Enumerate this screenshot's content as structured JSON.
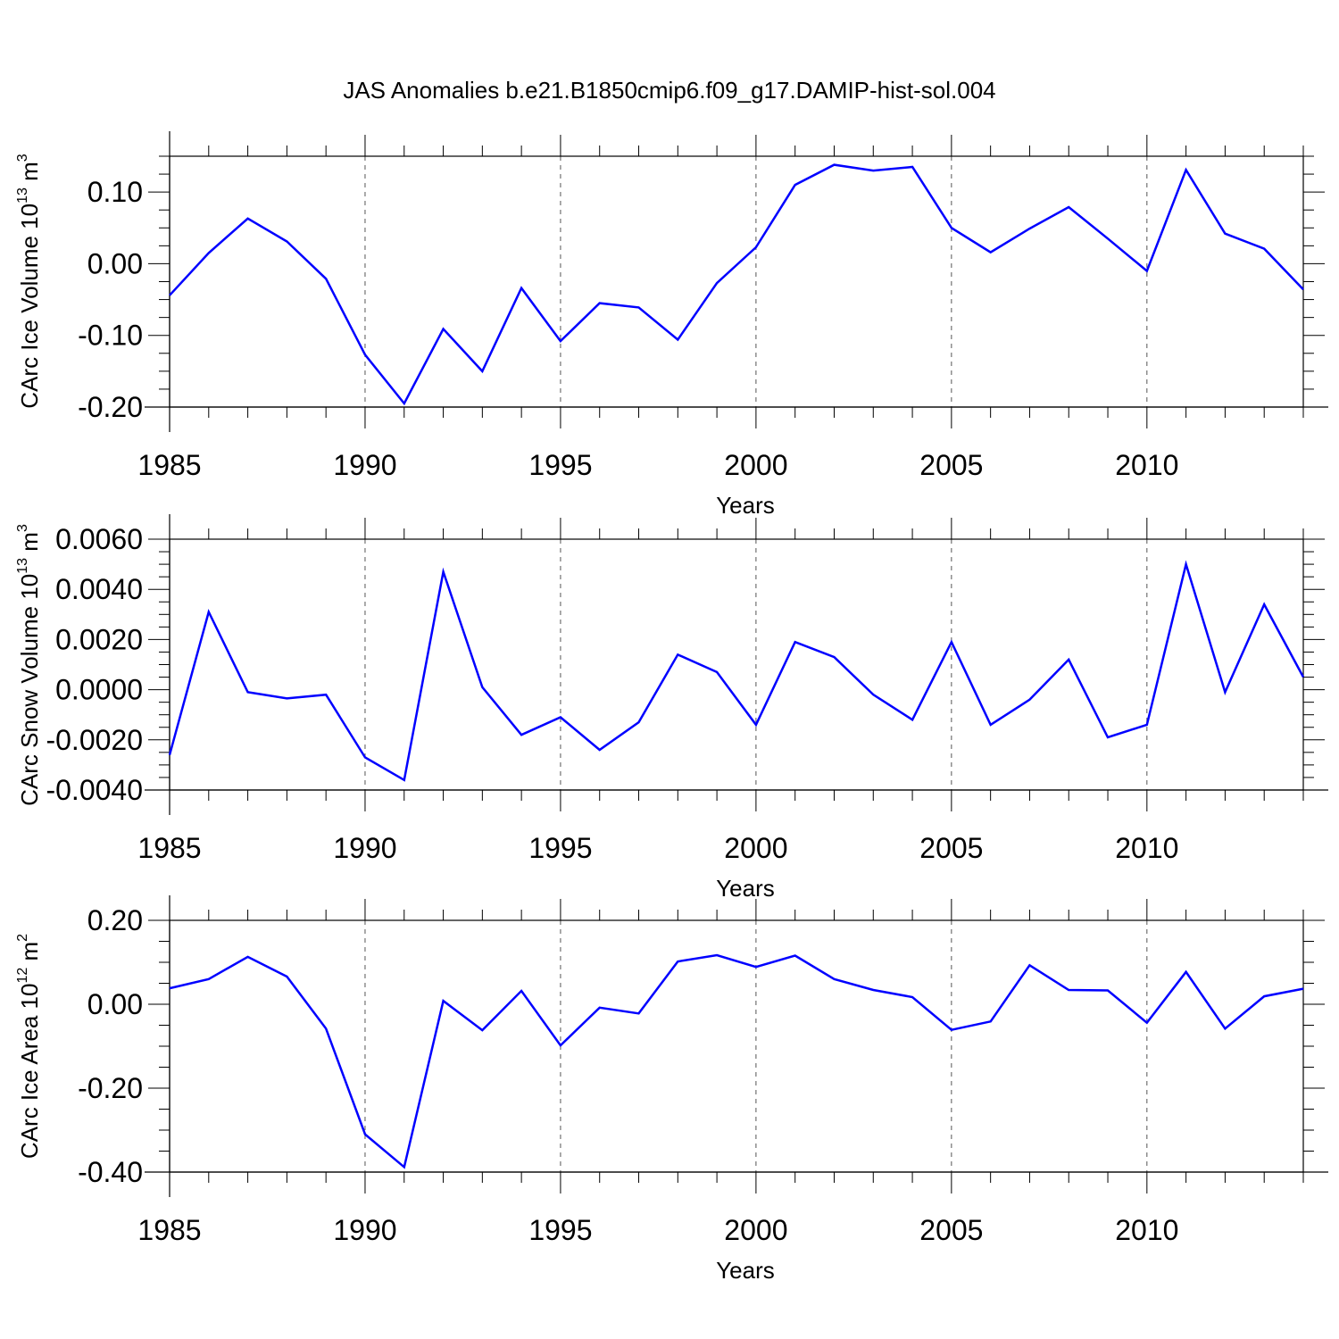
{
  "chart_data": [
    {
      "type": "line",
      "title": "JAS Anomalies b.e21.B1850cmip6.f09_g17.DAMIP-hist-sol.004",
      "ylabel_prefix": "CArc Ice Volume 10",
      "ylabel_exp": "13",
      "ylabel_unit": " m",
      "ylabel_unit_exp": "3",
      "xlabel": "Years",
      "xlim": [
        1985,
        2014
      ],
      "ylim": [
        -0.2,
        0.15
      ],
      "yticks": [
        -0.2,
        -0.1,
        0.0,
        0.1
      ],
      "ytick_labels": [
        "-0.20",
        "-0.10",
        "0.00",
        "0.10"
      ],
      "xticks": [
        1985,
        1990,
        1995,
        2000,
        2005,
        2010
      ],
      "xtick_labels": [
        "1985",
        "1990",
        "1995",
        "2000",
        "2005",
        "2010"
      ],
      "grid_x": [
        1990,
        1995,
        2000,
        2005,
        2010
      ],
      "color": "#0000ff",
      "x": [
        1985,
        1986,
        1987,
        1988,
        1989,
        1990,
        1991,
        1992,
        1993,
        1994,
        1995,
        1996,
        1997,
        1998,
        1999,
        2000,
        2001,
        2002,
        2003,
        2004,
        2005,
        2006,
        2007,
        2008,
        2009,
        2010,
        2011,
        2012,
        2013,
        2014
      ],
      "values": [
        -0.044,
        0.015,
        0.063,
        0.031,
        -0.021,
        -0.127,
        -0.195,
        -0.091,
        -0.15,
        -0.034,
        -0.108,
        -0.055,
        -0.061,
        -0.106,
        -0.027,
        0.023,
        0.11,
        0.138,
        0.13,
        0.135,
        0.05,
        0.016,
        0.049,
        0.079,
        0.035,
        -0.01,
        0.131,
        0.042,
        0.021,
        -0.036
      ]
    },
    {
      "type": "line",
      "ylabel_prefix": "CArc Snow Volume 10",
      "ylabel_exp": "13",
      "ylabel_unit": " m",
      "ylabel_unit_exp": "3",
      "xlabel": "Years",
      "xlim": [
        1985,
        2014
      ],
      "ylim": [
        -0.004,
        0.006
      ],
      "yticks": [
        -0.004,
        -0.002,
        0.0,
        0.002,
        0.004,
        0.006
      ],
      "ytick_labels": [
        "-0.0040",
        "-0.0020",
        "0.0000",
        "0.0020",
        "0.0040",
        "0.0060"
      ],
      "xticks": [
        1985,
        1990,
        1995,
        2000,
        2005,
        2010
      ],
      "xtick_labels": [
        "1985",
        "1990",
        "1995",
        "2000",
        "2005",
        "2010"
      ],
      "grid_x": [
        1990,
        1995,
        2000,
        2005,
        2010
      ],
      "color": "#0000ff",
      "x": [
        1985,
        1986,
        1987,
        1988,
        1989,
        1990,
        1991,
        1992,
        1993,
        1994,
        1995,
        1996,
        1997,
        1998,
        1999,
        2000,
        2001,
        2002,
        2003,
        2004,
        2005,
        2006,
        2007,
        2008,
        2009,
        2010,
        2011,
        2012,
        2013,
        2014
      ],
      "values": [
        -0.0026,
        0.0031,
        -0.0001,
        -0.00035,
        -0.0002,
        -0.0027,
        -0.0036,
        0.0047,
        0.0001,
        -0.0018,
        -0.0011,
        -0.0024,
        -0.0013,
        0.0014,
        0.0007,
        -0.0014,
        0.0019,
        0.0013,
        -0.0002,
        -0.0012,
        0.0019,
        -0.0014,
        -0.0004,
        0.0012,
        -0.0019,
        -0.0014,
        0.005,
        -0.0001,
        0.0034,
        0.0005
      ]
    },
    {
      "type": "line",
      "ylabel_prefix": "CArc Ice Area 10",
      "ylabel_exp": "12",
      "ylabel_unit": " m",
      "ylabel_unit_exp": "2",
      "xlabel": "Years",
      "xlim": [
        1985,
        2014
      ],
      "ylim": [
        -0.4,
        0.2
      ],
      "yticks": [
        -0.4,
        -0.2,
        0.0,
        0.2
      ],
      "ytick_labels": [
        "-0.40",
        "-0.20",
        "0.00",
        "0.20"
      ],
      "xticks": [
        1985,
        1990,
        1995,
        2000,
        2005,
        2010
      ],
      "xtick_labels": [
        "1985",
        "1990",
        "1995",
        "2000",
        "2005",
        "2010"
      ],
      "grid_x": [
        1990,
        1995,
        2000,
        2005,
        2010
      ],
      "color": "#0000ff",
      "x": [
        1985,
        1986,
        1987,
        1988,
        1989,
        1990,
        1991,
        1992,
        1993,
        1994,
        1995,
        1996,
        1997,
        1998,
        1999,
        2000,
        2001,
        2002,
        2003,
        2004,
        2005,
        2006,
        2007,
        2008,
        2009,
        2010,
        2011,
        2012,
        2013,
        2014
      ],
      "values": [
        0.038,
        0.06,
        0.113,
        0.066,
        -0.058,
        -0.31,
        -0.388,
        0.008,
        -0.062,
        0.032,
        -0.098,
        -0.008,
        -0.022,
        0.102,
        0.117,
        0.089,
        0.116,
        0.06,
        0.034,
        0.017,
        -0.061,
        -0.041,
        0.093,
        0.034,
        0.033,
        -0.044,
        0.077,
        -0.058,
        0.019,
        0.037
      ]
    }
  ]
}
